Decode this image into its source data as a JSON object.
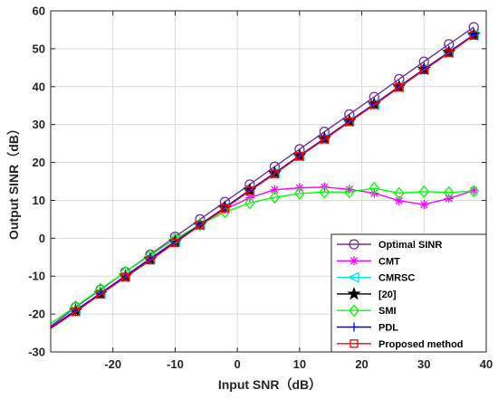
{
  "chart_data": {
    "type": "line",
    "xlabel": "Input SNR（dB）",
    "ylabel": "Output SINR（dB）",
    "xlim": [
      -30,
      40
    ],
    "ylim": [
      -30,
      60
    ],
    "xticks": [
      -20,
      -10,
      0,
      10,
      20,
      30,
      40
    ],
    "yticks": [
      -30,
      -20,
      -10,
      0,
      10,
      20,
      30,
      40,
      50,
      60
    ],
    "grid": true,
    "legend_position": "bottom-right",
    "series": [
      {
        "name": "Optimal SINR",
        "color": "#7030a0",
        "marker": "circle",
        "x": [
          -30,
          -26,
          -22,
          -18,
          -14,
          -10,
          -6,
          -2,
          2,
          6,
          10,
          14,
          18,
          22,
          26,
          30,
          34,
          38
        ],
        "y": [
          -23.2,
          -18.2,
          -13.6,
          -8.9,
          -4.3,
          0.4,
          5.0,
          9.6,
          14.2,
          18.9,
          23.5,
          28.1,
          32.7,
          37.3,
          42.0,
          46.6,
          51.2,
          55.7
        ]
      },
      {
        "name": "CMT",
        "color": "#ff00ff",
        "marker": "asterisk",
        "x": [
          -30,
          -26,
          -22,
          -18,
          -14,
          -10,
          -6,
          -2,
          2,
          6,
          10,
          14,
          18,
          22,
          26,
          30,
          34,
          38
        ],
        "y": [
          -23.5,
          -19.0,
          -14.5,
          -9.9,
          -5.3,
          -0.8,
          3.6,
          7.6,
          10.7,
          12.8,
          13.3,
          13.5,
          12.9,
          11.9,
          9.9,
          8.9,
          10.5,
          12.6
        ]
      },
      {
        "name": "CMRSC",
        "color": "#00e5e5",
        "marker": "triangle-left",
        "x": [
          -30,
          -26,
          -22,
          -18,
          -14,
          -10,
          -6,
          -2,
          2,
          6,
          10,
          14,
          18,
          22,
          26,
          30,
          34,
          38
        ],
        "y": [
          -23.6,
          -19.1,
          -14.6,
          -10.0,
          -5.5,
          -0.9,
          3.6,
          8.1,
          12.7,
          17.2,
          21.8,
          26.3,
          30.9,
          35.4,
          40.0,
          44.6,
          49.1,
          53.7
        ]
      },
      {
        "name": "[20]",
        "color": "#000000",
        "marker": "star",
        "x": [
          -30,
          -26,
          -22,
          -18,
          -14,
          -10,
          -6,
          -2,
          2,
          6,
          10,
          14,
          18,
          22,
          26,
          30,
          34,
          38
        ],
        "y": [
          -23.6,
          -19.1,
          -14.6,
          -10.0,
          -5.5,
          -0.9,
          3.6,
          8.1,
          12.7,
          17.2,
          21.8,
          26.3,
          30.9,
          35.4,
          40.0,
          44.6,
          49.1,
          53.7
        ]
      },
      {
        "name": "SMI",
        "color": "#00ff00",
        "marker": "diamond",
        "x": [
          -30,
          -26,
          -22,
          -18,
          -14,
          -10,
          -6,
          -2,
          2,
          6,
          10,
          14,
          18,
          22,
          26,
          30,
          34,
          38
        ],
        "y": [
          -22.5,
          -18.0,
          -13.4,
          -8.9,
          -4.5,
          -0.2,
          3.6,
          6.9,
          9.3,
          10.8,
          11.8,
          12.2,
          12.2,
          13.2,
          11.9,
          12.3,
          12.1,
          12.4
        ]
      },
      {
        "name": "PDL",
        "color": "#0000ff",
        "marker": "plus",
        "x": [
          -30,
          -26,
          -22,
          -18,
          -14,
          -10,
          -6,
          -2,
          2,
          6,
          10,
          14,
          18,
          22,
          26,
          30,
          34,
          38
        ],
        "y": [
          -23.6,
          -19.1,
          -14.6,
          -10.0,
          -5.5,
          -0.9,
          3.6,
          8.1,
          12.7,
          17.2,
          21.8,
          26.3,
          30.9,
          35.4,
          40.0,
          44.6,
          49.1,
          53.7
        ]
      },
      {
        "name": "Proposed method",
        "color": "#ff0000",
        "marker": "square",
        "x": [
          -30,
          -26,
          -22,
          -18,
          -14,
          -10,
          -6,
          -2,
          2,
          6,
          10,
          14,
          18,
          22,
          26,
          30,
          34,
          38
        ],
        "y": [
          -23.8,
          -19.4,
          -14.8,
          -10.3,
          -5.8,
          -1.2,
          3.4,
          7.9,
          12.5,
          17.0,
          21.6,
          26.1,
          30.7,
          35.2,
          39.8,
          44.4,
          48.9,
          53.5
        ]
      }
    ]
  }
}
